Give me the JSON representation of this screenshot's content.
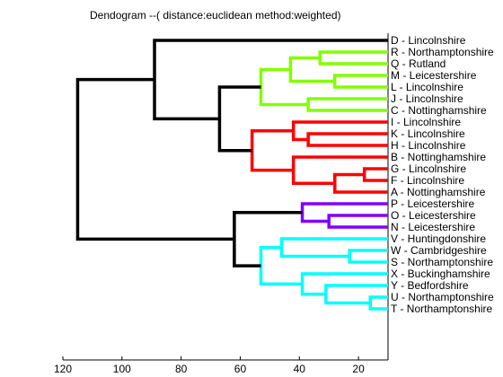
{
  "chart_data": {
    "type": "dendrogram",
    "title": "Dendogram --( distance:euclidean method:weighted)",
    "orientation": "horizontal",
    "xlim": [
      10,
      120
    ],
    "x_reversed": true,
    "xticks": [
      120,
      100,
      80,
      60,
      40,
      20
    ],
    "leaves": [
      "D - Lincolnshire",
      "R - Northamptonshire",
      "Q - Rutland",
      "M - Leicestershire",
      "L - Lincolnshire",
      "J - Lincolnshire",
      "C - Nottinghamshire",
      "I - Lincolnshire",
      "K - Lincolnshire",
      "H - Lincolnshire",
      "B - Nottinghamshire",
      "G - Lincolnshire",
      "F - Lincolnshire",
      "A - Nottinghamshire",
      "P - Leicestershire",
      "O - Leicestershire",
      "N - Leicestershire",
      "V - Huntingdonshire",
      "W - Cambridgeshire",
      "S - Northamptonshire",
      "X - Buckinghamshire",
      "Y - Bedfordshire",
      "U - Northamptonshire",
      "T - Northamptonshire"
    ],
    "colors": {
      "green": "#80ff00",
      "red": "#ff0000",
      "purple": "#8000ff",
      "cyan": "#00ffff",
      "black": "#000000"
    },
    "merges": [
      {
        "a": "L - Lincolnshire",
        "b": "M - Leicestershire",
        "height": 28,
        "color": "green"
      },
      {
        "a": "R - Northamptonshire",
        "b": "Q - Rutland",
        "height": 33,
        "color": "green"
      },
      {
        "a": "RQ",
        "b": "ML",
        "height": 43,
        "color": "green"
      },
      {
        "a": "J - Lincolnshire",
        "b": "C - Nottinghamshire",
        "height": 37,
        "color": "green"
      },
      {
        "a": "RQML",
        "b": "JC",
        "height": 53,
        "color": "green"
      },
      {
        "a": "K - Lincolnshire",
        "b": "H - Lincolnshire",
        "height": 37,
        "color": "red"
      },
      {
        "a": "I - Lincolnshire",
        "b": "KH",
        "height": 42,
        "color": "red"
      },
      {
        "a": "G - Lincolnshire",
        "b": "F - Lincolnshire",
        "height": 18,
        "color": "red"
      },
      {
        "a": "GF",
        "b": "A - Nottinghamshire",
        "height": 28,
        "color": "red"
      },
      {
        "a": "B - Nottinghamshire",
        "b": "GFA",
        "height": 42,
        "color": "red"
      },
      {
        "a": "IKH",
        "b": "BGFA",
        "height": 56,
        "color": "red"
      },
      {
        "a": "green-cluster",
        "b": "red-cluster",
        "height": 67,
        "color": "black"
      },
      {
        "a": "D - Lincolnshire",
        "b": "green-red",
        "height": 89,
        "color": "black"
      },
      {
        "a": "O - Leicestershire",
        "b": "N - Leicestershire",
        "height": 30,
        "color": "purple"
      },
      {
        "a": "P - Leicestershire",
        "b": "ON",
        "height": 39,
        "color": "purple"
      },
      {
        "a": "W - Cambridgeshire",
        "b": "S - Northamptonshire",
        "height": 23,
        "color": "cyan"
      },
      {
        "a": "V - Huntingdonshire",
        "b": "WS",
        "height": 46,
        "color": "cyan"
      },
      {
        "a": "U - Northamptonshire",
        "b": "T - Northamptonshire",
        "height": 16,
        "color": "cyan"
      },
      {
        "a": "Y - Bedfordshire",
        "b": "UT",
        "height": 31,
        "color": "cyan"
      },
      {
        "a": "X - Buckinghamshire",
        "b": "YUT",
        "height": 39,
        "color": "cyan"
      },
      {
        "a": "VWS",
        "b": "XYUT",
        "height": 53,
        "color": "cyan"
      },
      {
        "a": "purple-cluster",
        "b": "cyan-cluster",
        "height": 62,
        "color": "black"
      },
      {
        "a": "D-green-red",
        "b": "purple-cyan",
        "height": 115,
        "color": "black"
      }
    ]
  }
}
